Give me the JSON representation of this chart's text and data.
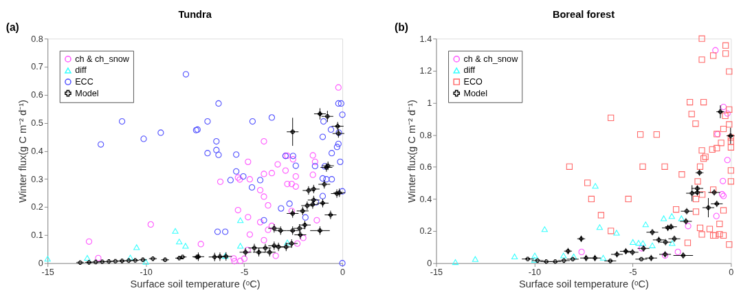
{
  "chart_data": [
    {
      "type": "scatter",
      "title": "Tundra",
      "xlabel": "Surface soil temperature (ᵒC)",
      "ylabel": "Winter flux(g C m⁻² d⁻¹)",
      "annotations": [
        "(a)"
      ],
      "xlim": [
        -15,
        0
      ],
      "ylim": [
        0,
        0.8
      ],
      "xticks": [
        -15,
        -10,
        -5,
        0
      ],
      "yticks": [
        0,
        0.1,
        0.2,
        0.3,
        0.4,
        0.5,
        0.6,
        0.7,
        0.8
      ],
      "grid": false,
      "legend": "top left",
      "series": [
        {
          "name": "ch & ch_snow",
          "color": "#ff55ff",
          "marker": "circle",
          "x": [
            -12.89,
            -12.42,
            -9.75,
            -0.2,
            -3.99,
            -4.8,
            -6.21,
            -5.31,
            -5.22,
            -4.71,
            -3.99,
            -3.59,
            -3.29,
            -2.89,
            -2.8,
            -2.89,
            -2.51,
            -2.37,
            -2.8,
            -2.58,
            -2.37,
            -1.5,
            -1.39,
            -1.5,
            -4.18,
            -3.99,
            -3.78,
            -5.31,
            -4.8,
            -4.18,
            -3.78,
            -3.59,
            -4.71,
            -3.99,
            -7.2,
            -1.3,
            -1.99,
            -2.29,
            -2.58,
            -5.53,
            -5.19,
            -4.99,
            -5.49,
            -4.82,
            -3.39
          ],
          "values": [
            0.077,
            0.018,
            0.138,
            0.626,
            0.434,
            0.361,
            0.29,
            0.305,
            0.298,
            0.299,
            0.318,
            0.321,
            0.352,
            0.383,
            0.383,
            0.33,
            0.37,
            0.309,
            0.282,
            0.282,
            0.273,
            0.384,
            0.361,
            0.315,
            0.26,
            0.237,
            0.206,
            0.189,
            0.164,
            0.146,
            0.119,
            0.133,
            0.102,
            0.082,
            0.068,
            0.153,
            0.09,
            0.07,
            0.186,
            0.017,
            0.008,
            0.016,
            0.007,
            0.047,
            0.026
          ]
        },
        {
          "name": "diff",
          "color": "#33ffff",
          "marker": "triangle",
          "x": [
            -15,
            -12.98,
            -10.79,
            -10.47,
            -10.0,
            -8.5,
            -8.3,
            -7.98,
            -5.19,
            -5.19,
            -2.8,
            -5.96
          ],
          "values": [
            0.016,
            0.019,
            0.02,
            0.057,
            0.005,
            0.115,
            0.077,
            0.062,
            0.153,
            0.062,
            0.074,
            0.026
          ]
        },
        {
          "name": "ECC",
          "color": "#4d4dff",
          "marker": "circle",
          "x": [
            -12.29,
            -11.21,
            -10.11,
            -9.24,
            -7.96,
            -7.44,
            -6.3,
            -6.86,
            -7.37,
            -4.57,
            -3.59,
            -6.41,
            -6.41,
            -6.86,
            -6.3,
            -5.4,
            -5.4,
            -5.69,
            -5.04,
            -4.18,
            -4.6,
            -6.35,
            -5.96,
            -3.99,
            -3.12,
            -2.69,
            -1.88,
            -1.34,
            -1.0,
            -2.89,
            -2.51,
            -2.37,
            -1.39,
            -0.9,
            -1.0,
            -0.81,
            -0.54,
            -1.0,
            -0.96,
            -0.58,
            -0.54,
            -0.27,
            -0.2,
            -0.2,
            -0.06,
            0,
            -0.11,
            0,
            0,
            -0.18
          ],
          "values": [
            0.423,
            0.505,
            0.443,
            0.465,
            0.673,
            0.474,
            0.569,
            0.505,
            0.476,
            0.505,
            0.519,
            0.434,
            0.403,
            0.392,
            0.386,
            0.387,
            0.327,
            0.296,
            0.309,
            0.296,
            0.27,
            0.112,
            0.112,
            0.153,
            0.195,
            0.212,
            0.163,
            0.217,
            0.239,
            0.382,
            0.382,
            0.347,
            0.346,
            0.345,
            0.302,
            0.299,
            0.299,
            0.45,
            0.505,
            0.476,
            0.392,
            0.414,
            0.425,
            0.569,
            0.569,
            0.529,
            0.361,
            0.256,
            0,
            0.465
          ]
        },
        {
          "name": "Model",
          "color": "#000000",
          "marker": "cross",
          "x": [
            -13.34,
            -12.89,
            -12.55,
            -12.22,
            -11.88,
            -11.55,
            -11.21,
            -10.87,
            -10.54,
            -10.15,
            -9.64,
            -9.02,
            -8.3,
            -8.13,
            -7.4,
            -7.33,
            -6.5,
            -6.23,
            -5.92,
            -4.93,
            -4.48,
            -4.25,
            -3.92,
            -3.7,
            -3.47,
            -3.25,
            -2.86,
            -2.58,
            -3.47,
            -3.14,
            -2.53,
            -2.18,
            -1.91,
            -2.14,
            -1.14,
            -2.53,
            -2.02,
            -1.79,
            -1.51,
            -1.72,
            -1.46,
            -1.46,
            -1.0,
            -0.92,
            -0.6,
            -0.73,
            -0.81,
            -1.14,
            -0.76,
            -2.53,
            -0.24,
            -0.2,
            -0.28,
            -0.15
          ],
          "values": [
            0.002,
            0.003,
            0.004,
            0.005,
            0.006,
            0.007,
            0.008,
            0.009,
            0.01,
            0.012,
            0.016,
            0.012,
            0.018,
            0.022,
            0.022,
            0.023,
            0.022,
            0.023,
            0.024,
            0.039,
            0.054,
            0.039,
            0.054,
            0.039,
            0.062,
            0.058,
            0.058,
            0.07,
            0.124,
            0.116,
            0.116,
            0.124,
            0.136,
            0.101,
            0.116,
            0.177,
            0.186,
            0.205,
            0.209,
            0.259,
            0.264,
            0.225,
            0.214,
            0.281,
            0.172,
            0.347,
            0.341,
            0.532,
            0.523,
            0.468,
            0.488,
            0.462,
            0.248,
            0.251
          ],
          "errors": [
            null,
            null,
            null,
            null,
            null,
            null,
            null,
            null,
            null,
            null,
            null,
            null,
            null,
            null,
            null,
            0.015,
            0.015,
            0.015,
            0.015,
            0.015,
            0.015,
            0.015,
            0.015,
            0.015,
            0.015,
            0.015,
            0.015,
            0.015,
            0.015,
            0.015,
            0.015,
            0.015,
            0.015,
            0.015,
            0.015,
            0.015,
            0.015,
            0.015,
            0.015,
            0.015,
            0.015,
            0.015,
            0.015,
            0.015,
            0.015,
            0.015,
            0.015,
            0.02,
            0.02,
            0.05,
            0.015,
            0.015,
            0.015,
            0.015
          ],
          "xerrors": [
            0.2,
            0.2,
            0.2,
            0.2,
            0.2,
            0.2,
            0.2,
            0.2,
            0.2,
            0.2,
            0.2,
            0.2,
            0.2,
            0.2,
            0.2,
            0.3,
            0.3,
            0.3,
            0.3,
            0.3,
            0.3,
            0.3,
            0.3,
            0.3,
            0.3,
            0.3,
            0.3,
            0.3,
            0.3,
            0.3,
            0.3,
            0.3,
            0.3,
            0.3,
            0.5,
            0.3,
            0.3,
            0.3,
            0.3,
            0.3,
            0.3,
            0.3,
            0.3,
            0.3,
            0.3,
            0.3,
            0.3,
            0.3,
            0.3,
            0.3,
            0.3,
            0.3,
            0.3,
            0.3
          ]
        }
      ]
    },
    {
      "type": "scatter",
      "title": "Boreal forest",
      "xlabel": "Surface soil temperature (ᵒC)",
      "ylabel": "Winter flux(g C m⁻² d⁻¹)",
      "annotations": [
        "(b)"
      ],
      "xlim": [
        -15,
        0
      ],
      "ylim": [
        0,
        1.4
      ],
      "xticks": [
        -15,
        -10,
        -5,
        0
      ],
      "yticks": [
        0,
        0.2,
        0.4,
        0.6,
        0.8,
        1,
        1.2,
        1.4
      ],
      "grid": false,
      "legend": "top left",
      "series": [
        {
          "name": "ch & ch_snow",
          "color": "#ff55ff",
          "marker": "circle",
          "x": [
            -0.79,
            -0.38,
            -0.18,
            -0.68,
            -0.18,
            -0.41,
            -0.45,
            -0.38,
            -0.74,
            -2.18,
            -2.7,
            -3.35,
            -4.54,
            -7.6
          ],
          "values": [
            1.327,
            0.974,
            0.933,
            0.805,
            0.643,
            0.512,
            0.43,
            0.419,
            0.294,
            0.231,
            0.07,
            0.048,
            0.093,
            0.07
          ]
        },
        {
          "name": "diff",
          "color": "#33ffff",
          "marker": "triangle",
          "x": [
            -14.02,
            -13.01,
            -11.01,
            -9.98,
            -10.0,
            -9.48,
            -8.52,
            -6.9,
            -6.68,
            -5.82,
            -8.0,
            -6.5,
            -4.99,
            -4.7,
            -4.48,
            -4.34,
            -4.0,
            -3.42,
            -3.01,
            -2.52,
            -2.99
          ],
          "values": [
            0.007,
            0.026,
            0.042,
            0.048,
            0.021,
            0.212,
            0.048,
            0.482,
            0.225,
            0.19,
            0.042,
            0.034,
            0.132,
            0.127,
            0.125,
            0.242,
            0.111,
            0.28,
            0.294,
            0.28,
            0.125
          ]
        },
        {
          "name": "ECO",
          "color": "#ff6666",
          "marker": "square",
          "x": [
            -8.22,
            -7.3,
            -7.1,
            -6.61,
            -6.11,
            -6.11,
            -5.22,
            -4.61,
            -3.78,
            -4.49,
            -3.37,
            -2.79,
            -2.5,
            -2.2,
            -2.09,
            -1.39,
            -2.0,
            -1.8,
            -1.48,
            -1.48,
            -0.9,
            -0.27,
            -0.27,
            -0.09,
            -0.09,
            -0.29,
            -0.09,
            -0.38,
            -0.72,
            0,
            0,
            0,
            -0.5,
            -0.95,
            -0.72,
            -1.48,
            -1.3,
            -1.39,
            -1.57,
            -1.69,
            -1.78,
            -1.46,
            -0.9,
            -1.78,
            -0.38,
            0,
            0,
            -1.57,
            -1.48,
            -1.08,
            -0.9,
            -0.79,
            -0.58,
            -0.58,
            -0.38,
            -0.09
          ],
          "values": [
            0.602,
            0.501,
            0.4,
            0.299,
            0.201,
            0.906,
            0.4,
            0.802,
            0.802,
            0.602,
            0.602,
            0.335,
            0.553,
            0.127,
            1.004,
            1.004,
            0.93,
            0.87,
            1.4,
            1.269,
            1.294,
            1.357,
            1.307,
            1.195,
            0.958,
            0.919,
            0.865,
            0.837,
            0.805,
            0.783,
            0.758,
            0.722,
            0.75,
            0.709,
            0.717,
            0.703,
            0.663,
            0.652,
            0.602,
            0.51,
            0.4,
            0.428,
            0.458,
            0.321,
            0.329,
            0.578,
            0.51,
            0.22,
            0.179,
            0.213,
            0.173,
            0.173,
            0.245,
            0.181,
            0.173,
            0.116
          ]
        },
        {
          "name": "Model",
          "color": "#000000",
          "marker": "cross",
          "x": [
            -10.34,
            -9.84,
            -9.4,
            -8.94,
            -8.5,
            -8.29,
            -7.62,
            -8.05,
            -7.37,
            -6.92,
            -6.14,
            -5.8,
            -5.35,
            -5.01,
            -4.56,
            -4.06,
            -4.0,
            -3.67,
            -3.33,
            -3.21,
            -3.05,
            -2.88,
            -2.43,
            -2.25,
            -2.29,
            -1.98,
            -1.71,
            -1.71,
            -1.6,
            -1.15,
            -0.85,
            -0.72,
            -0.54,
            -0.02,
            -3.35,
            -4.45
          ],
          "values": [
            0.026,
            0.016,
            0.01,
            0.01,
            0.016,
            0.075,
            0.152,
            0.025,
            0.032,
            0.032,
            0.014,
            0.055,
            0.074,
            0.068,
            0.025,
            0.032,
            0.193,
            0.145,
            0.131,
            0.22,
            0.227,
            0.152,
            0.048,
            0.324,
            0.261,
            0.436,
            0.466,
            0.441,
            0.564,
            0.346,
            0.441,
            0.37,
            0.944,
            0.794,
            0.055,
            0.092
          ],
          "errors": [
            null,
            null,
            null,
            null,
            null,
            0.02,
            0.02,
            null,
            0.02,
            0.02,
            null,
            0.02,
            0.02,
            0.02,
            null,
            0.02,
            0.02,
            0.02,
            0.02,
            0.02,
            0.02,
            0.02,
            0.02,
            0.02,
            0.02,
            0.05,
            0.02,
            0.02,
            0.02,
            0.06,
            0.02,
            0.02,
            0.04,
            0.05,
            0.02,
            0.02
          ],
          "xerrors": [
            0.3,
            0.3,
            0.3,
            0.3,
            0.3,
            0.2,
            0.2,
            0.3,
            0.3,
            0.3,
            0.3,
            0.3,
            0.3,
            0.3,
            0.3,
            0.3,
            0.3,
            0.3,
            0.3,
            0.3,
            0.3,
            0.3,
            0.5,
            0.3,
            0.3,
            0.3,
            0.3,
            0.3,
            0.2,
            0.3,
            0.3,
            0.3,
            0.2,
            0.2,
            0.3,
            0.3
          ]
        }
      ]
    }
  ]
}
